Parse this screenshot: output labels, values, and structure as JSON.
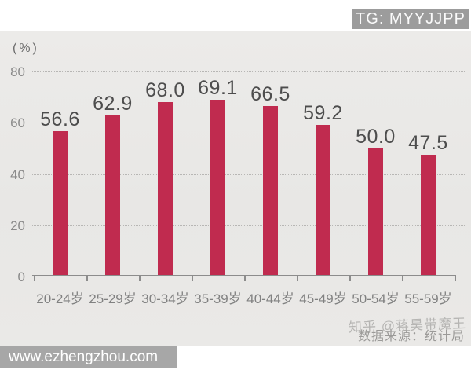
{
  "header": {
    "tg_badge": "TG: MYYJJPP"
  },
  "footer": {
    "site_badge": "www.ezhengzhou.com",
    "zhihu_watermark": "知乎 @蒋昊带魔王",
    "data_source": "数据来源：统计局"
  },
  "chart_data": {
    "type": "bar",
    "title": "",
    "unit_label": "(%)",
    "categories": [
      "20-24岁",
      "25-29岁",
      "30-34岁",
      "35-39岁",
      "40-44岁",
      "45-49岁",
      "50-54岁",
      "55-59岁"
    ],
    "values": [
      56.6,
      62.9,
      68.0,
      69.1,
      66.5,
      59.2,
      50.0,
      47.5
    ],
    "value_labels": [
      "56.6",
      "62.9",
      "68.0",
      "69.1",
      "66.5",
      "59.2",
      "50.0",
      "47.5"
    ],
    "xlabel": "",
    "ylabel": "(%)",
    "yticks": [
      0,
      20,
      40,
      60,
      80
    ],
    "ylim": [
      0,
      86
    ],
    "grid": "horizontal dotted",
    "legend": "none",
    "colors": {
      "bar": "#c02b4f",
      "panel_bg": "#e9e8e6",
      "value_label": "#4d4d4d",
      "axis_label": "#818181",
      "tick_label": "#8a8a8a",
      "gridline": "#b7b6b4",
      "axis_line": "#8c8c8c"
    }
  }
}
